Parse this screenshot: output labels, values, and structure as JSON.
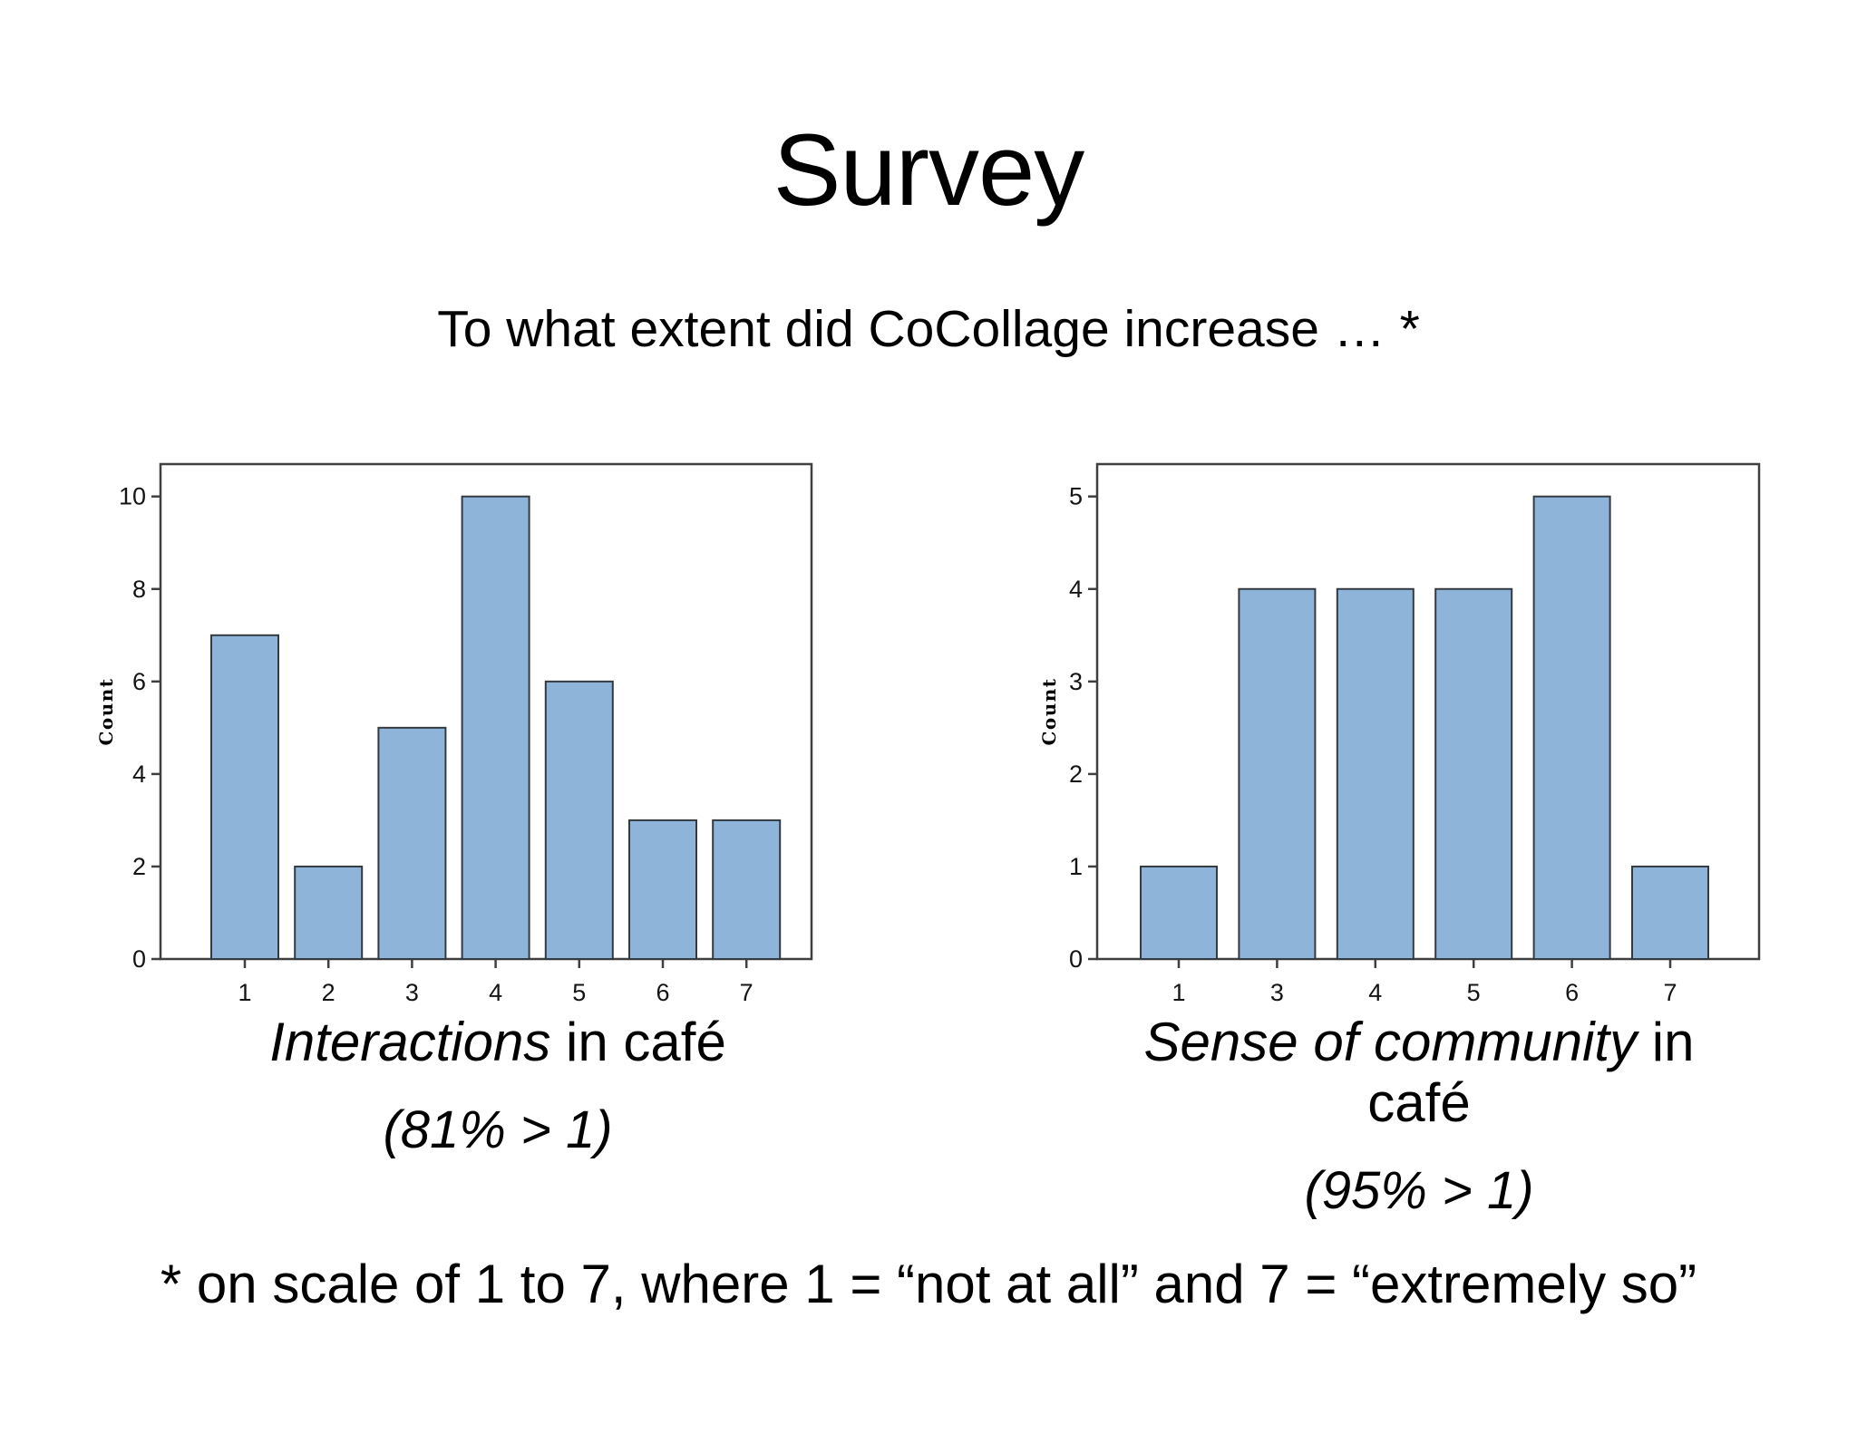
{
  "slide": {
    "title": "Survey",
    "subtitle": "To what extent did CoCollage increase … *",
    "footnote": "* on scale of 1 to 7, where 1 = “not at all” and 7 = “extremely so”"
  },
  "captions": [
    {
      "lead_italic": "Interactions",
      "rest": " in café",
      "note": "(81% > 1)"
    },
    {
      "lead_italic": "Sense of community",
      "rest": " in café",
      "note": "(95% > 1)"
    }
  ],
  "colors": {
    "bar_fill": "#8fb4da",
    "bar_stroke": "#333a40",
    "frame_stroke": "#3f3f3f",
    "tick_text": "#141414"
  },
  "chart_data": [
    {
      "type": "bar",
      "title": "Interactions in café (81% > 1)",
      "categories": [
        "1",
        "2",
        "3",
        "4",
        "5",
        "6",
        "7"
      ],
      "values": [
        7,
        2,
        5,
        10,
        6,
        3,
        3
      ],
      "xlabel": "",
      "ylabel": "Count",
      "ylim": [
        0,
        10.7
      ],
      "yticks": [
        0,
        2,
        4,
        6,
        8,
        10
      ],
      "grid": false,
      "legend": false
    },
    {
      "type": "bar",
      "title": "Sense of community in café (95% > 1)",
      "categories": [
        "1",
        "3",
        "4",
        "5",
        "6",
        "7"
      ],
      "values": [
        1,
        4,
        4,
        4,
        5,
        1
      ],
      "xlabel": "",
      "ylabel": "Count",
      "ylim": [
        0,
        5.35
      ],
      "yticks": [
        0,
        1,
        2,
        3,
        4,
        5
      ],
      "grid": false,
      "legend": false
    }
  ]
}
